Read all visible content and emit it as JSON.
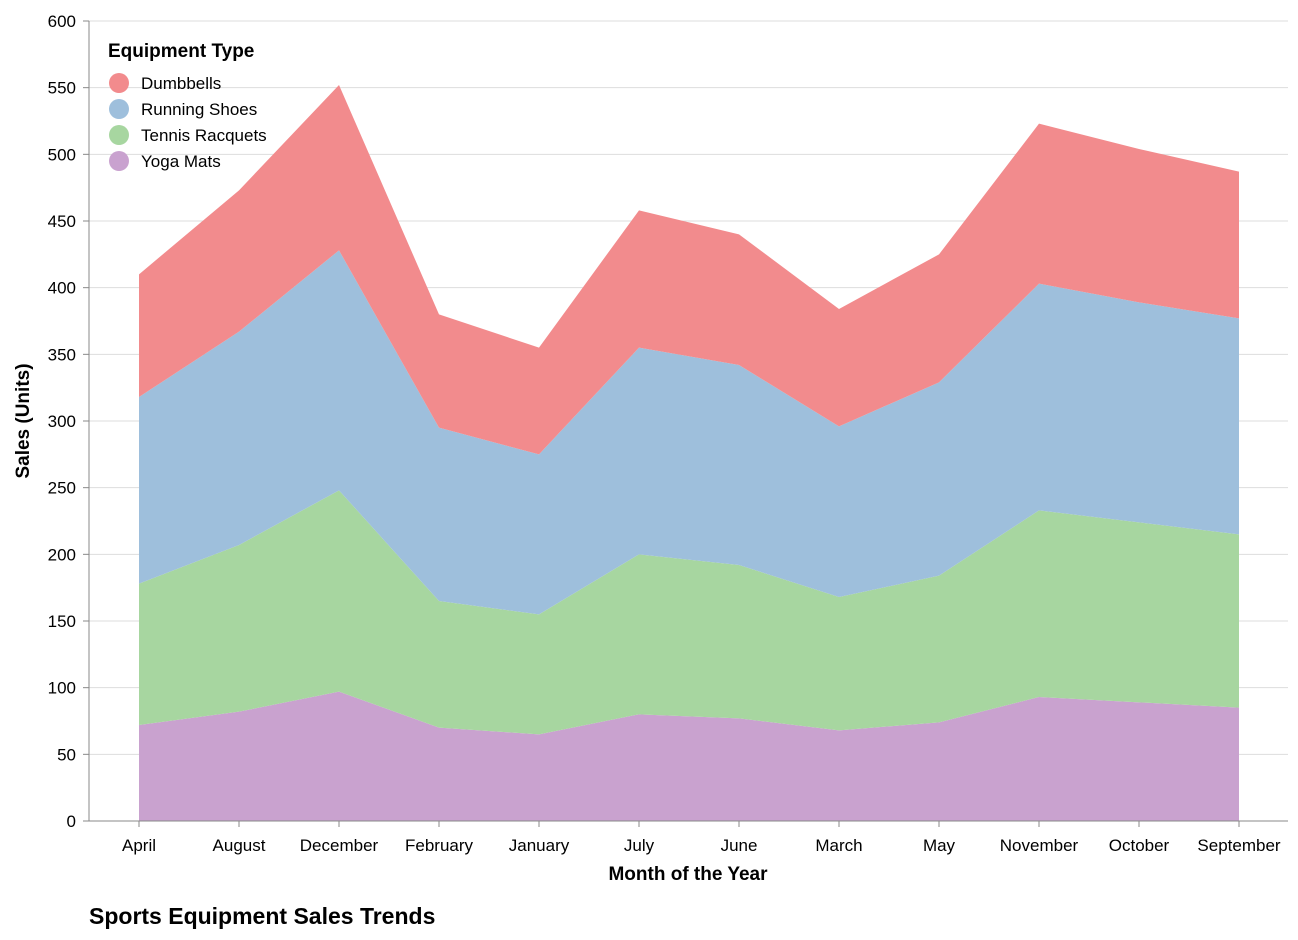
{
  "chart_data": {
    "type": "area",
    "stacked": true,
    "title": "Sports Equipment Sales Trends",
    "xlabel": "Month of the Year",
    "ylabel": "Sales (Units)",
    "ylim": [
      0,
      600
    ],
    "yticks": [
      0,
      50,
      100,
      150,
      200,
      250,
      300,
      350,
      400,
      450,
      500,
      550,
      600
    ],
    "grid": true,
    "legend": {
      "title": "Equipment Type",
      "placement": "top-left"
    },
    "categories": [
      "April",
      "August",
      "December",
      "February",
      "January",
      "July",
      "June",
      "March",
      "May",
      "November",
      "October",
      "September"
    ],
    "series": [
      {
        "name": "Yoga Mats",
        "color": "#c9a2cf",
        "values": [
          72,
          82,
          97,
          70,
          65,
          80,
          77,
          68,
          74,
          93,
          89,
          85
        ]
      },
      {
        "name": "Tennis Racquets",
        "color": "#a7d6a0",
        "values": [
          106,
          125,
          151,
          95,
          90,
          120,
          115,
          100,
          110,
          140,
          135,
          130
        ]
      },
      {
        "name": "Running Shoes",
        "color": "#9ebfdc",
        "values": [
          140,
          160,
          180,
          130,
          120,
          155,
          150,
          128,
          145,
          170,
          165,
          162
        ]
      },
      {
        "name": "Dumbbells",
        "color": "#f28b8d",
        "values": [
          92,
          106,
          124,
          85,
          80,
          103,
          98,
          88,
          96,
          120,
          115,
          110
        ]
      }
    ],
    "legend_order": [
      "Dumbbells",
      "Running Shoes",
      "Tennis Racquets",
      "Yoga Mats"
    ]
  }
}
